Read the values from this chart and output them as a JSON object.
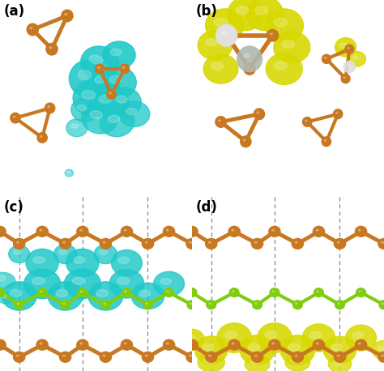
{
  "figsize": [
    4.74,
    4.58
  ],
  "dpi": 100,
  "background_color": "white",
  "panels": [
    "(a)",
    "(b)",
    "(c)",
    "(d)"
  ],
  "panel_label_fontsize": 12,
  "panel_label_bold": true,
  "colors": {
    "orange": "#C87820",
    "cyan": "#20C8C8",
    "yellow": "#D8D800",
    "green": "#80CC10",
    "white_sphere": "#E0E0E0",
    "gray_sphere": "#B0B8B0",
    "dashed_line": "#888888"
  }
}
